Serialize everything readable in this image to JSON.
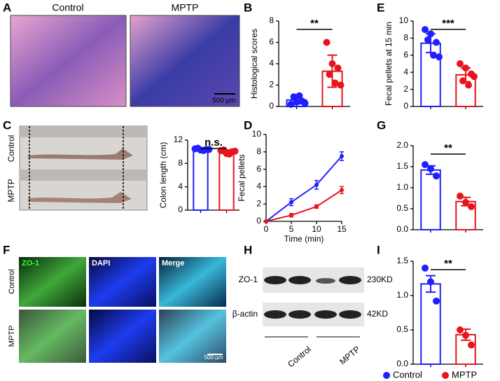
{
  "legend": [
    {
      "name": "Control",
      "color": "#1f1fff"
    },
    {
      "name": "MPTP",
      "color": "#e8141c"
    }
  ],
  "images": [
    {
      "panel": "A",
      "labels": [
        "Control",
        "MPTP"
      ],
      "scale": "500 µm"
    },
    {
      "panel": "C",
      "rows": [
        "Control",
        "MPTP"
      ]
    },
    {
      "panel": "F",
      "columns": [
        "ZO-1",
        "DAPI",
        "Merge"
      ],
      "rows": [
        "Control",
        "MPTP"
      ],
      "scale": "500 µm"
    },
    {
      "panel": "H",
      "bands": [
        {
          "label": "ZO-1",
          "size": "230KD"
        },
        {
          "label": "β-actin",
          "size": "42KD"
        }
      ],
      "groups": [
        "Control",
        "MPTP"
      ]
    }
  ],
  "chart_data": [
    {
      "type": "bar",
      "panel": "B",
      "ylabel": "Histological scores",
      "ylim": [
        0,
        8
      ],
      "yticks": [
        0,
        2,
        4,
        6,
        8
      ],
      "significance": "**",
      "categories": [
        null,
        null
      ],
      "values": [
        0.6,
        3.3
      ],
      "errors": [
        0.35,
        1.5
      ],
      "colors": [
        "#1f1fff",
        "#e8141c"
      ],
      "points": [
        [
          0.2,
          0.4,
          0.5,
          0.9,
          1.0,
          0.3
        ],
        [
          6.0,
          4.0,
          3.6,
          3.0,
          2.2,
          2.0
        ]
      ]
    },
    {
      "type": "bar",
      "panel": "E",
      "ylabel": "Fecal pellets at 15 min",
      "ylim": [
        0,
        10
      ],
      "yticks": [
        0,
        2,
        4,
        6,
        8,
        10
      ],
      "significance": "***",
      "categories": [
        null,
        null
      ],
      "values": [
        7.4,
        3.7
      ],
      "errors": [
        1.1,
        0.8
      ],
      "colors": [
        "#1f1fff",
        "#e8141c"
      ],
      "points": [
        [
          9.0,
          8.5,
          7.5,
          7.8,
          6.0,
          5.8
        ],
        [
          5.0,
          4.5,
          3.8,
          3.0,
          2.5,
          3.5
        ]
      ]
    },
    {
      "type": "bar",
      "ylabel": "Colon length (cm)",
      "ylim": [
        0,
        12
      ],
      "yticks": [
        0,
        4,
        8,
        12
      ],
      "significance": "n.s.",
      "categories": [
        null,
        null
      ],
      "values": [
        10.4,
        10.0
      ],
      "errors": [
        0.2,
        0.3
      ],
      "colors": [
        "#1f1fff",
        "#e8141c"
      ],
      "points": [
        [
          10.5,
          10.3,
          10.4,
          10.6,
          10.2,
          10.4
        ],
        [
          10.2,
          9.7,
          10.0,
          10.3,
          9.6,
          10.1
        ]
      ]
    },
    {
      "type": "line",
      "panel": "D",
      "xlabel": "Time (min)",
      "ylabel": "Fecal pellets",
      "x": [
        0,
        5,
        10,
        15
      ],
      "xlim": [
        0,
        15
      ],
      "xticks": [
        0,
        5,
        10,
        15
      ],
      "ylim": [
        0,
        10
      ],
      "yticks": [
        0,
        2,
        4,
        6,
        8,
        10
      ],
      "series": [
        {
          "color": "#1f1fff",
          "values": [
            0,
            2.2,
            4.2,
            7.5
          ],
          "errors": [
            0.1,
            0.4,
            0.5,
            0.5
          ]
        },
        {
          "color": "#e8141c",
          "values": [
            0,
            0.7,
            1.7,
            3.6
          ],
          "errors": [
            0.1,
            0.2,
            0.2,
            0.4
          ]
        }
      ]
    },
    {
      "type": "bar",
      "panel": "G",
      "ylim": [
        0,
        2
      ],
      "yticks": [
        {
          "value": 0,
          "label": "0.0"
        },
        0.5,
        {
          "value": 1,
          "label": "1.0"
        },
        1.5,
        {
          "value": 2,
          "label": "2.0"
        }
      ],
      "significance": "**",
      "categories": [
        null,
        null
      ],
      "values": [
        1.42,
        0.67
      ],
      "errors": [
        0.1,
        0.1
      ],
      "colors": [
        "#1f1fff",
        "#e8141c"
      ],
      "points": [
        [
          1.55,
          1.45,
          1.28
        ],
        [
          0.8,
          0.65,
          0.55
        ]
      ]
    },
    {
      "type": "bar",
      "panel": "I",
      "ylim": [
        0,
        1.5
      ],
      "yticks": [
        {
          "value": 0,
          "label": "0.0"
        },
        0.5,
        {
          "value": 1,
          "label": "1.0"
        },
        1.5
      ],
      "significance": "**",
      "categories": [
        null,
        null
      ],
      "values": [
        1.17,
        0.43
      ],
      "errors": [
        0.12,
        0.08
      ],
      "colors": [
        "#1f1fff",
        "#e8141c"
      ],
      "points": [
        [
          1.4,
          1.2,
          0.92
        ],
        [
          0.5,
          0.42,
          0.28
        ]
      ]
    }
  ]
}
